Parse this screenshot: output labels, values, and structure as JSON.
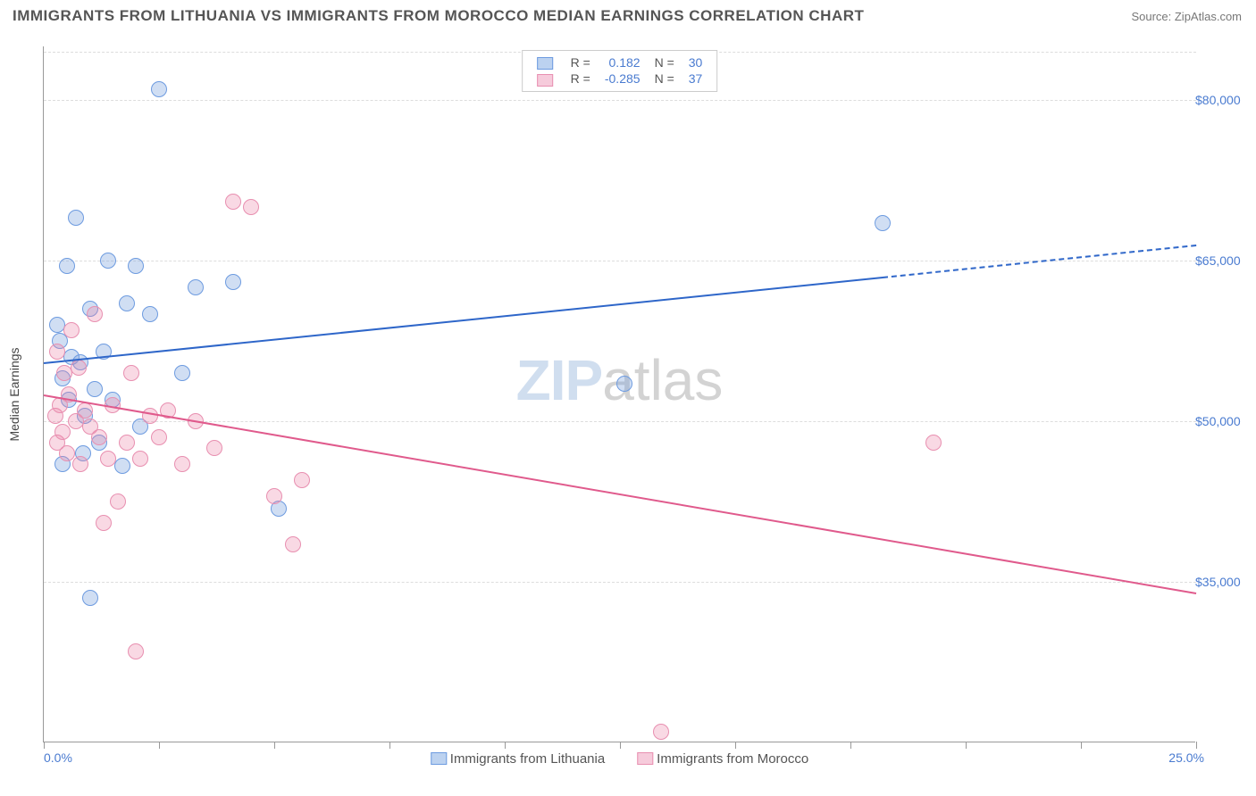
{
  "title": "IMMIGRANTS FROM LITHUANIA VS IMMIGRANTS FROM MOROCCO MEDIAN EARNINGS CORRELATION CHART",
  "source_label": "Source: ZipAtlas.com",
  "watermark": {
    "zip": "ZIP",
    "atlas": "atlas"
  },
  "y_axis_title": "Median Earnings",
  "chart": {
    "type": "scatter",
    "background_color": "#ffffff",
    "grid_color": "#dddddd",
    "axis_color": "#999999",
    "label_color": "#4a7bd0",
    "xlim": [
      0,
      25
    ],
    "ylim": [
      20000,
      85000
    ],
    "x_ticks": [
      0,
      2.5,
      5,
      7.5,
      10,
      12.5,
      15,
      17.5,
      20,
      22.5,
      25
    ],
    "x_tick_labels": {
      "left": "0.0%",
      "right": "25.0%"
    },
    "y_ticks": [
      35000,
      50000,
      65000,
      80000
    ],
    "y_tick_labels": [
      "$35,000",
      "$50,000",
      "$65,000",
      "$80,000"
    ],
    "point_radius": 9,
    "point_stroke_width": 1.5,
    "trend_line_width": 2
  },
  "series": [
    {
      "name": "Immigrants from Lithuania",
      "fill_color": "rgba(120,160,220,0.35)",
      "stroke_color": "#6d9be0",
      "legend_swatch_fill": "#bcd2f0",
      "legend_swatch_border": "#6d9be0",
      "R": "0.182",
      "N": "30",
      "trend": {
        "x1": 0,
        "y1": 55500,
        "x2": 18.2,
        "y2": 63500,
        "dash_to_x": 25,
        "dash_to_y": 66500,
        "color": "#2e66c9"
      },
      "points": [
        [
          0.3,
          59000
        ],
        [
          0.35,
          57500
        ],
        [
          0.4,
          46000
        ],
        [
          0.4,
          54000
        ],
        [
          0.5,
          64500
        ],
        [
          0.55,
          52000
        ],
        [
          0.6,
          56000
        ],
        [
          0.7,
          69000
        ],
        [
          0.8,
          55500
        ],
        [
          0.85,
          47000
        ],
        [
          0.9,
          50500
        ],
        [
          1.0,
          60500
        ],
        [
          1.0,
          33500
        ],
        [
          1.1,
          53000
        ],
        [
          1.2,
          48000
        ],
        [
          1.3,
          56500
        ],
        [
          1.4,
          65000
        ],
        [
          1.5,
          52000
        ],
        [
          1.7,
          45800
        ],
        [
          1.8,
          61000
        ],
        [
          2.0,
          64500
        ],
        [
          2.1,
          49500
        ],
        [
          2.3,
          60000
        ],
        [
          2.5,
          81000
        ],
        [
          3.0,
          54500
        ],
        [
          3.3,
          62500
        ],
        [
          4.1,
          63000
        ],
        [
          5.1,
          41800
        ],
        [
          12.6,
          53500
        ],
        [
          18.2,
          68500
        ]
      ]
    },
    {
      "name": "Immigrants from Morocco",
      "fill_color": "rgba(235,130,165,0.3)",
      "stroke_color": "#e88fb0",
      "legend_swatch_fill": "#f6cbdb",
      "legend_swatch_border": "#e88fb0",
      "R": "-0.285",
      "N": "37",
      "trend": {
        "x1": 0,
        "y1": 52500,
        "x2": 25,
        "y2": 34000,
        "color": "#e05a8c"
      },
      "points": [
        [
          0.25,
          50500
        ],
        [
          0.3,
          56500
        ],
        [
          0.3,
          48000
        ],
        [
          0.35,
          51500
        ],
        [
          0.4,
          49000
        ],
        [
          0.45,
          54500
        ],
        [
          0.5,
          47000
        ],
        [
          0.55,
          52500
        ],
        [
          0.6,
          58500
        ],
        [
          0.7,
          50000
        ],
        [
          0.75,
          55000
        ],
        [
          0.8,
          46000
        ],
        [
          0.9,
          51000
        ],
        [
          1.0,
          49500
        ],
        [
          1.1,
          60000
        ],
        [
          1.2,
          48500
        ],
        [
          1.3,
          40500
        ],
        [
          1.4,
          46500
        ],
        [
          1.5,
          51500
        ],
        [
          1.6,
          42500
        ],
        [
          1.8,
          48000
        ],
        [
          1.9,
          54500
        ],
        [
          2.0,
          28500
        ],
        [
          2.1,
          46500
        ],
        [
          2.3,
          50500
        ],
        [
          2.5,
          48500
        ],
        [
          2.7,
          51000
        ],
        [
          3.0,
          46000
        ],
        [
          3.3,
          50000
        ],
        [
          3.7,
          47500
        ],
        [
          4.1,
          70500
        ],
        [
          4.5,
          70000
        ],
        [
          5.0,
          43000
        ],
        [
          5.4,
          38500
        ],
        [
          5.6,
          44500
        ],
        [
          13.4,
          21000
        ],
        [
          19.3,
          48000
        ]
      ]
    }
  ],
  "legend_top_labels": {
    "R": "R =",
    "N": "N ="
  },
  "legend_bottom": [
    {
      "label": "Immigrants from Lithuania",
      "series": 0
    },
    {
      "label": "Immigrants from Morocco",
      "series": 1
    }
  ]
}
